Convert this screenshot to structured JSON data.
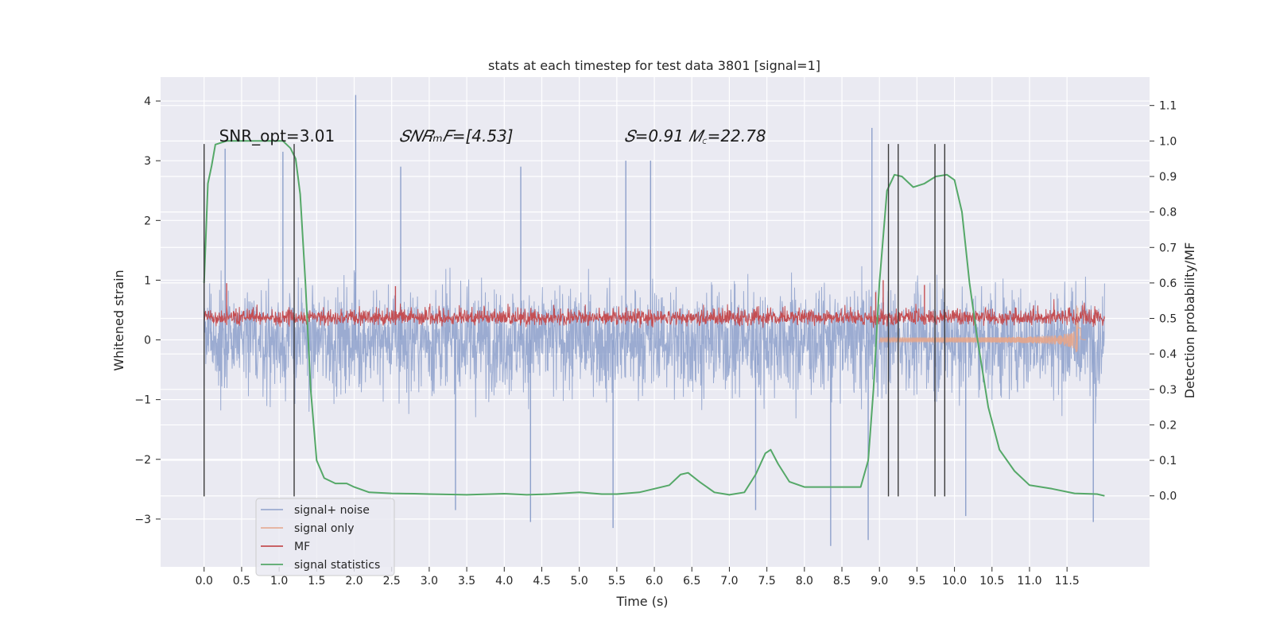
{
  "chart_data": {
    "type": "line",
    "title": "stats at each timestep for test data 3801 [signal=1]",
    "xlabel": "Time (s)",
    "ylabel_left": "Whitened strain",
    "ylabel_right": "Detection probability/MF",
    "xlim": [
      -0.58,
      12.6
    ],
    "ylim_left": [
      -3.8,
      4.4
    ],
    "ylim_right": [
      -0.2,
      1.18
    ],
    "xticks": [
      0.0,
      0.5,
      1.0,
      1.5,
      2.0,
      2.5,
      3.0,
      3.5,
      4.0,
      4.5,
      5.0,
      5.5,
      6.0,
      6.5,
      7.0,
      7.5,
      8.0,
      8.5,
      9.0,
      9.5,
      10.0,
      10.5,
      11.0,
      11.5
    ],
    "xtick_labels": [
      "0.0",
      "0.5",
      "1.0",
      "1.5",
      "2.0",
      "2.5",
      "3.0",
      "3.5",
      "4.0",
      "4.5",
      "5.0",
      "5.5",
      "6.0",
      "6.5",
      "7.0",
      "7.5",
      "8.0",
      "8.5",
      "9.0",
      "9.5",
      "10.0",
      "10.5",
      "11.0",
      "11.5"
    ],
    "yticks_left": [
      -3,
      -2,
      -1,
      0,
      1,
      2,
      3,
      4
    ],
    "ytick_labels_left": [
      "−3",
      "−2",
      "−1",
      "0",
      "1",
      "2",
      "3",
      "4"
    ],
    "yticks_right": [
      0.0,
      0.1,
      0.2,
      0.3,
      0.4,
      0.5,
      0.6,
      0.7,
      0.8,
      0.9,
      1.0,
      1.1
    ],
    "ytick_labels_right": [
      "0.0",
      "0.1",
      "0.2",
      "0.3",
      "0.4",
      "0.5",
      "0.6",
      "0.7",
      "0.8",
      "0.9",
      "1.0",
      "1.1"
    ],
    "grid": true,
    "legend_position": "lower-left",
    "annotations": [
      {
        "text": "SNR_opt=3.01",
        "x": 0.2,
        "y": 3.32,
        "italic": false
      },
      {
        "text": "𝑆𝑁𝑅ₘ𝐹=[4.53]",
        "x": 2.6,
        "y": 3.32,
        "italic": true
      },
      {
        "text": "𝑆=0.91   𝑀꜀=22.78",
        "x": 5.6,
        "y": 3.32,
        "italic": true
      }
    ],
    "vertical_lines": [
      {
        "x": 0.0,
        "ymin": -2.62,
        "ymax": 3.28
      },
      {
        "x": 1.2,
        "ymin": -2.62,
        "ymax": 3.28
      },
      {
        "x": 9.12,
        "ymin": -2.62,
        "ymax": 3.28
      },
      {
        "x": 9.25,
        "ymin": -2.62,
        "ymax": 3.28
      },
      {
        "x": 9.74,
        "ymin": -2.62,
        "ymax": 3.28
      },
      {
        "x": 9.87,
        "ymin": -2.62,
        "ymax": 3.28
      }
    ],
    "series": [
      {
        "name": "signal+ noise",
        "axis": "left",
        "color": "#8da0cb",
        "style": "dense-noise",
        "x_range": [
          0.0,
          12.0
        ],
        "envelope_typical": [
          -1.55,
          1.55
        ],
        "peaks": [
          {
            "x": 0.0,
            "y": 2.65
          },
          {
            "x": 0.28,
            "y": 3.2
          },
          {
            "x": 1.05,
            "y": 3.15
          },
          {
            "x": 2.02,
            "y": 4.1
          },
          {
            "x": 2.62,
            "y": 2.9
          },
          {
            "x": 4.22,
            "y": 2.9
          },
          {
            "x": 5.62,
            "y": 3.0
          },
          {
            "x": 5.95,
            "y": 3.0
          },
          {
            "x": 8.9,
            "y": 3.55
          },
          {
            "x": 8.85,
            "y": -3.35
          },
          {
            "x": 8.35,
            "y": -3.45
          },
          {
            "x": 5.45,
            "y": -3.15
          },
          {
            "x": 3.35,
            "y": -2.85
          },
          {
            "x": 11.85,
            "y": -3.05
          },
          {
            "x": 10.15,
            "y": -2.95
          },
          {
            "x": 4.35,
            "y": -3.05
          },
          {
            "x": 7.35,
            "y": -2.85
          }
        ]
      },
      {
        "name": "signal only",
        "axis": "left",
        "color": "#e5a58a",
        "style": "chirp",
        "x_range": [
          9.0,
          11.75
        ],
        "amplitude_peak": 0.58,
        "peak_time": 11.65
      },
      {
        "name": "MF",
        "axis": "left",
        "color": "#c44e52",
        "style": "dense-noise",
        "x_range": [
          0.0,
          12.0
        ],
        "envelope_typical": [
          0.05,
          0.65
        ],
        "peaks": [
          {
            "x": 0.3,
            "y": 0.95
          },
          {
            "x": 2.55,
            "y": 0.9
          },
          {
            "x": 9.05,
            "y": 1.0
          },
          {
            "x": 9.6,
            "y": 0.92
          },
          {
            "x": 8.95,
            "y": 0.8
          }
        ]
      },
      {
        "name": "signal statistics",
        "axis": "right",
        "color": "#55a868",
        "style": "line",
        "x": [
          0.0,
          0.05,
          0.1,
          0.15,
          0.3,
          0.5,
          0.7,
          0.9,
          1.05,
          1.15,
          1.22,
          1.28,
          1.35,
          1.42,
          1.5,
          1.6,
          1.75,
          1.9,
          2.0,
          2.2,
          2.5,
          2.8,
          3.0,
          3.5,
          4.0,
          4.3,
          4.6,
          5.0,
          5.3,
          5.5,
          5.8,
          6.2,
          6.35,
          6.45,
          6.6,
          6.8,
          7.0,
          7.2,
          7.35,
          7.48,
          7.55,
          7.65,
          7.8,
          8.0,
          8.3,
          8.6,
          8.75,
          8.85,
          8.92,
          9.0,
          9.1,
          9.2,
          9.3,
          9.45,
          9.6,
          9.75,
          9.9,
          10.0,
          10.1,
          10.2,
          10.3,
          10.45,
          10.6,
          10.8,
          11.0,
          11.3,
          11.6,
          11.9,
          12.0
        ],
        "y": [
          0.6,
          0.88,
          0.93,
          0.99,
          1.0,
          1.0,
          1.0,
          1.0,
          1.0,
          0.98,
          0.95,
          0.85,
          0.6,
          0.3,
          0.1,
          0.05,
          0.035,
          0.035,
          0.025,
          0.01,
          0.007,
          0.006,
          0.005,
          0.003,
          0.006,
          0.003,
          0.005,
          0.01,
          0.005,
          0.005,
          0.01,
          0.03,
          0.06,
          0.065,
          0.04,
          0.01,
          0.003,
          0.01,
          0.06,
          0.12,
          0.13,
          0.09,
          0.04,
          0.025,
          0.025,
          0.025,
          0.025,
          0.1,
          0.3,
          0.6,
          0.86,
          0.905,
          0.9,
          0.87,
          0.88,
          0.9,
          0.905,
          0.89,
          0.8,
          0.6,
          0.45,
          0.25,
          0.13,
          0.07,
          0.03,
          0.02,
          0.007,
          0.005,
          0.0
        ]
      }
    ],
    "colors": {
      "background": "#eaeaf2",
      "grid": "#ffffff",
      "vertical_line": "#3a3a3a",
      "text": "#262626"
    }
  }
}
